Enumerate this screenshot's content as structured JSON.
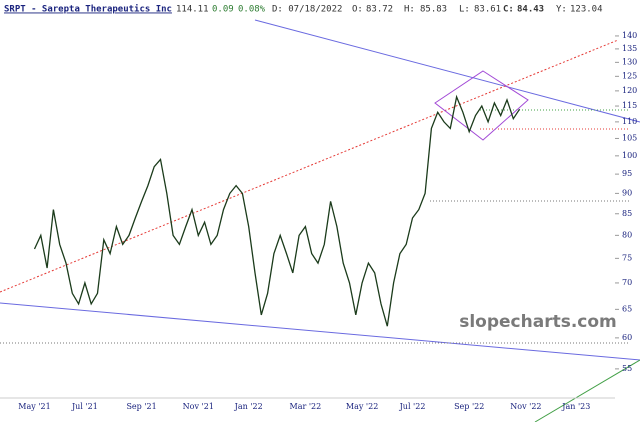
{
  "header": {
    "symbol": "SRPT - Sarepta Therapeutics Inc",
    "last": "114.11",
    "change": "0.09",
    "change_pct": "0.08%",
    "date": "D: 07/18/2022",
    "o_label": "O:",
    "open": "83.72",
    "h_label": "H:",
    "high": "85.83",
    "l_label": "L:",
    "low": "83.61",
    "c_label": "C:",
    "close": "84.43",
    "y_label": "Y:",
    "y_value": "123.04"
  },
  "watermark": "slopecharts.com",
  "chart_data": {
    "type": "line",
    "log_scale": true,
    "categories": [
      null,
      null,
      null,
      null,
      null,
      "May '21",
      null,
      null,
      null,
      null,
      null,
      null,
      null,
      "Jul '21",
      null,
      null,
      null,
      null,
      null,
      null,
      null,
      null,
      "Sep '21",
      null,
      null,
      null,
      null,
      null,
      null,
      null,
      null,
      "Nov '21",
      null,
      null,
      null,
      null,
      null,
      null,
      null,
      "Jan '22",
      null,
      null,
      null,
      null,
      null,
      null,
      null,
      null,
      "Mar '22",
      null,
      null,
      null,
      null,
      null,
      null,
      null,
      null,
      "May '22",
      null,
      null,
      null,
      null,
      null,
      null,
      null,
      "Jul '22",
      null,
      null,
      null,
      null,
      null,
      null,
      null,
      null,
      "Sep '22",
      null,
      null,
      null,
      null,
      null,
      null,
      null,
      null,
      "Nov '22",
      null,
      null,
      null,
      null,
      null,
      null,
      null,
      "Jan '23",
      null,
      null,
      null,
      null,
      null,
      null,
      null,
      null
    ],
    "series": [
      {
        "name": "SRPT",
        "color": "#1b3b1b",
        "values": [
          null,
          null,
          null,
          null,
          null,
          77,
          80,
          73,
          86,
          78,
          74,
          68,
          66,
          70,
          66,
          68,
          79,
          76,
          82,
          78,
          80,
          84,
          88,
          92,
          97,
          99,
          90,
          80,
          78,
          82,
          86,
          80,
          83,
          78,
          80,
          86,
          90,
          92,
          90,
          82,
          72,
          64,
          68,
          76,
          80,
          76,
          72,
          80,
          82,
          76,
          74,
          78,
          88,
          82,
          74,
          70,
          64,
          70,
          74,
          72,
          66,
          62,
          70,
          76,
          78,
          84,
          86,
          90,
          108,
          113,
          110,
          108,
          118,
          113,
          107,
          112,
          115,
          110,
          116,
          112,
          117,
          111,
          114,
          null,
          null,
          null,
          null,
          null,
          null,
          null,
          null,
          null,
          null,
          null,
          null,
          null,
          null,
          null,
          null,
          null
        ]
      }
    ],
    "ylim": [
      50.4,
      152.7
    ],
    "yticks": [
      55,
      60,
      65,
      70,
      75,
      80,
      85,
      90,
      95,
      100,
      105,
      110,
      115,
      120,
      125,
      130,
      135,
      140
    ]
  }
}
